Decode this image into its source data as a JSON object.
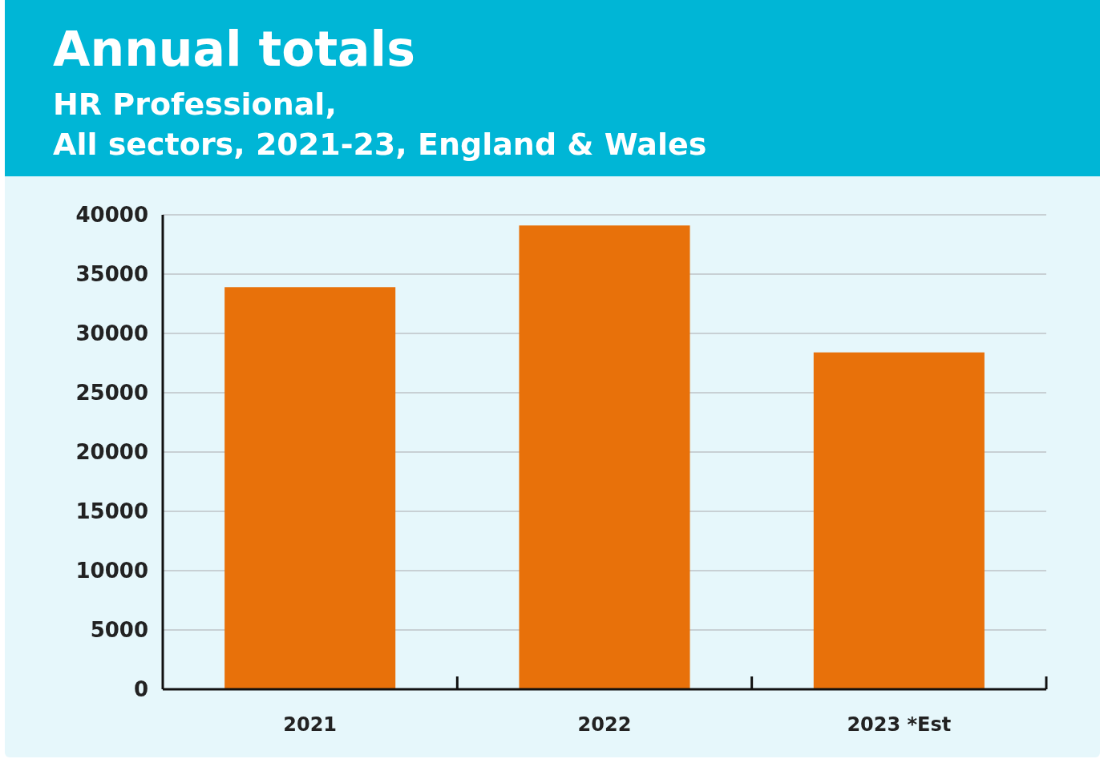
{
  "chart_data": {
    "type": "bar",
    "title": "Annual totals",
    "subtitle": "HR Professional,\nAll sectors, 2021-23, England & Wales",
    "categories": [
      "2021",
      "2022",
      "2023 *Est"
    ],
    "values": [
      33900,
      39100,
      28400
    ],
    "color": "#e8710a",
    "ylim": [
      0,
      40000
    ],
    "yticks": [
      0,
      5000,
      10000,
      15000,
      20000,
      25000,
      30000,
      35000,
      40000
    ],
    "grid": "y"
  }
}
